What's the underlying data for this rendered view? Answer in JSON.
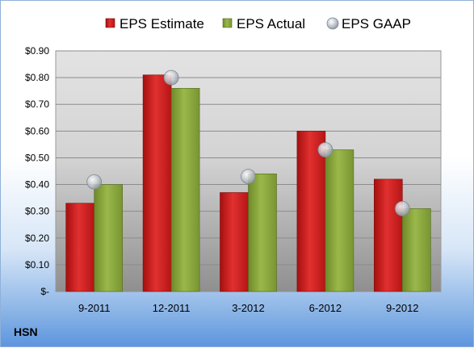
{
  "company": "HSN",
  "colors": {
    "estimate": "#d42020",
    "actual": "#8aa63a",
    "gaap": "#b9bfc7"
  },
  "chart_data": {
    "type": "bar",
    "categories": [
      "9-2011",
      "12-2011",
      "3-2012",
      "6-2012",
      "9-2012"
    ],
    "series": [
      {
        "name": "EPS Estimate",
        "values": [
          0.33,
          0.81,
          0.37,
          0.6,
          0.42
        ]
      },
      {
        "name": "EPS Actual",
        "values": [
          0.4,
          0.76,
          0.44,
          0.53,
          0.31
        ]
      },
      {
        "name": "EPS GAAP",
        "type": "scatter",
        "values": [
          0.41,
          0.8,
          0.43,
          0.53,
          0.31
        ]
      }
    ],
    "y_ticks": [
      "$-",
      "$0.10",
      "$0.20",
      "$0.30",
      "$0.40",
      "$0.50",
      "$0.60",
      "$0.70",
      "$0.80",
      "$0.90"
    ],
    "ylim": [
      0,
      0.9
    ],
    "grid": true,
    "legend_position": "top"
  }
}
